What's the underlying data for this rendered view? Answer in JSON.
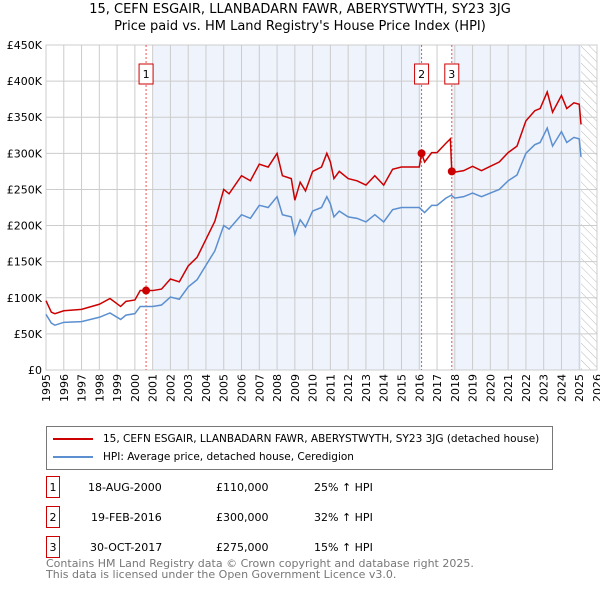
{
  "chart_data": {
    "type": "line",
    "title": "15, CEFN ESGAIR, LLANBADARN FAWR, ABERYSTWYTH, SY23 3JG",
    "subtitle": "Price paid vs. HM Land Registry's House Price Index (HPI)",
    "xlim": [
      1995,
      2026
    ],
    "ylim": [
      0,
      450000
    ],
    "x_ticks": [
      "1995",
      "1996",
      "1997",
      "1998",
      "1999",
      "2000",
      "2001",
      "2002",
      "2003",
      "2004",
      "2005",
      "2006",
      "2007",
      "2008",
      "2009",
      "2010",
      "2011",
      "2012",
      "2013",
      "2014",
      "2015",
      "2016",
      "2017",
      "2018",
      "2019",
      "2020",
      "2021",
      "2022",
      "2023",
      "2024",
      "2025",
      "2026"
    ],
    "y_ticks": [
      {
        "v": 0,
        "l": "£0"
      },
      {
        "v": 50000,
        "l": "£50K"
      },
      {
        "v": 100000,
        "l": "£100K"
      },
      {
        "v": 150000,
        "l": "£150K"
      },
      {
        "v": 200000,
        "l": "£200K"
      },
      {
        "v": 250000,
        "l": "£250K"
      },
      {
        "v": 300000,
        "l": "£300K"
      },
      {
        "v": 350000,
        "l": "£350K"
      },
      {
        "v": 400000,
        "l": "£400K"
      },
      {
        "v": 450000,
        "l": "£450K"
      }
    ],
    "grid": true,
    "series": [
      {
        "name": "15, CEFN ESGAIR, LLANBADARN FAWR, ABERYSTWYTH, SY23 3JG (detached house)",
        "color": "#cc0000",
        "x": [
          1995,
          1995.3,
          1995.5,
          1996,
          1997,
          1998,
          1998.6,
          1999.2,
          1999.5,
          2000,
          2000.3,
          2000.6,
          2001,
          2001.5,
          2002,
          2002.5,
          2003,
          2003.5,
          2004,
          2004.5,
          2005,
          2005.3,
          2006,
          2006.5,
          2007,
          2007.5,
          2008,
          2008.3,
          2008.8,
          2009,
          2009.3,
          2009.6,
          2010,
          2010.5,
          2010.8,
          2011,
          2011.2,
          2011.5,
          2012,
          2012.5,
          2013,
          2013.5,
          2014,
          2014.5,
          2015,
          2015.5,
          2016,
          2016.13,
          2016.3,
          2016.7,
          2017,
          2017.5,
          2017.75,
          2017.83,
          2018,
          2018.5,
          2019,
          2019.5,
          2020,
          2020.5,
          2021,
          2021.5,
          2022,
          2022.5,
          2022.8,
          2023.2,
          2023.5,
          2024,
          2024.3,
          2024.7,
          2025,
          2025.1
        ],
        "y": [
          96,
          80,
          78,
          82,
          84,
          91,
          99,
          88,
          95,
          97,
          110,
          110,
          110,
          112,
          126,
          122,
          144,
          156,
          181,
          206,
          250,
          244,
          269,
          262,
          285,
          281,
          300,
          269,
          265,
          235,
          260,
          248,
          275,
          281,
          300,
          288,
          265,
          275,
          265,
          262,
          256,
          269,
          256,
          278,
          281,
          281,
          281,
          300,
          288,
          301,
          301,
          314,
          320,
          275,
          274,
          276,
          282,
          276,
          282,
          288,
          301,
          310,
          345,
          359,
          362,
          385,
          357,
          380,
          362,
          370,
          368,
          340
        ]
      },
      {
        "name": "HPI: Average price, detached house, Ceredigion",
        "color": "#5b8fd0",
        "x": [
          1995,
          1995.3,
          1995.5,
          1996,
          1997,
          1998,
          1998.6,
          1999.2,
          1999.5,
          2000,
          2000.3,
          2000.6,
          2001,
          2001.5,
          2002,
          2002.5,
          2003,
          2003.5,
          2004,
          2004.5,
          2005,
          2005.3,
          2006,
          2006.5,
          2007,
          2007.5,
          2008,
          2008.3,
          2008.8,
          2009,
          2009.3,
          2009.6,
          2010,
          2010.5,
          2010.8,
          2011,
          2011.2,
          2011.5,
          2012,
          2012.5,
          2013,
          2013.5,
          2014,
          2014.5,
          2015,
          2015.5,
          2016,
          2016.3,
          2016.7,
          2017,
          2017.5,
          2017.8,
          2018,
          2018.5,
          2019,
          2019.5,
          2020,
          2020.5,
          2021,
          2021.5,
          2022,
          2022.5,
          2022.8,
          2023.2,
          2023.5,
          2024,
          2024.3,
          2024.7,
          2025,
          2025.1
        ],
        "y": [
          77,
          65,
          62,
          66,
          67,
          73,
          79,
          70,
          76,
          78,
          88,
          88,
          88,
          90,
          101,
          98,
          115,
          125,
          145,
          165,
          200,
          195,
          215,
          210,
          228,
          225,
          240,
          215,
          212,
          188,
          208,
          198,
          220,
          225,
          240,
          230,
          212,
          220,
          212,
          210,
          205,
          215,
          205,
          222,
          225,
          225,
          225,
          218,
          228,
          228,
          238,
          242,
          238,
          240,
          245,
          240,
          245,
          250,
          262,
          270,
          300,
          312,
          315,
          335,
          310,
          330,
          315,
          322,
          320,
          295
        ]
      }
    ],
    "y_unit": "thousands GBP",
    "sales": [
      {
        "n": "1",
        "x": 2000.63,
        "y": 110
      },
      {
        "n": "2",
        "x": 2016.13,
        "y": 300
      },
      {
        "n": "3",
        "x": 2017.83,
        "y": 275
      }
    ],
    "shaded_ranges": [
      [
        2001,
        2016.13
      ],
      [
        2017.83,
        2025.1
      ]
    ],
    "hatched_range": [
      2025.1,
      2026
    ],
    "legend_position": "below"
  },
  "legend": [
    {
      "label": "15, CEFN ESGAIR, LLANBADARN FAWR, ABERYSTWYTH, SY23 3JG (detached house)",
      "color": "#cc0000"
    },
    {
      "label": "HPI: Average price, detached house, Ceredigion",
      "color": "#5b8fd0"
    }
  ],
  "transactions": [
    {
      "n": "1",
      "date": "18-AUG-2000",
      "price": "£110,000",
      "hpi": "25% ↑ HPI"
    },
    {
      "n": "2",
      "date": "19-FEB-2016",
      "price": "£300,000",
      "hpi": "32% ↑ HPI"
    },
    {
      "n": "3",
      "date": "30-OCT-2017",
      "price": "£275,000",
      "hpi": "15% ↑ HPI"
    }
  ],
  "footer": {
    "line1": "Contains HM Land Registry data © Crown copyright and database right 2025.",
    "line2": "This data is licensed under the Open Government Licence v3.0."
  }
}
